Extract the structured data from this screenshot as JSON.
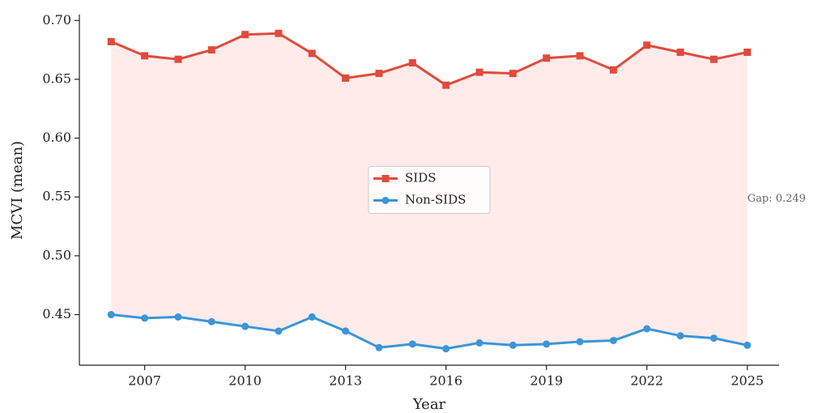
{
  "chart_data": {
    "type": "line",
    "x_label": "Year",
    "y_label": "MCVI (mean)",
    "x": [
      2006,
      2007,
      2008,
      2009,
      2010,
      2011,
      2012,
      2013,
      2014,
      2015,
      2016,
      2017,
      2018,
      2019,
      2020,
      2021,
      2022,
      2023,
      2024,
      2025
    ],
    "series": [
      {
        "name": "SIDS",
        "color": "#e04b3c",
        "marker": "square",
        "values": [
          0.682,
          0.67,
          0.667,
          0.675,
          0.688,
          0.689,
          0.672,
          0.651,
          0.655,
          0.664,
          0.645,
          0.656,
          0.655,
          0.668,
          0.67,
          0.658,
          0.679,
          0.673,
          0.667,
          0.673
        ]
      },
      {
        "name": "Non-SIDS",
        "color": "#3a96d6",
        "marker": "circle",
        "values": [
          0.45,
          0.447,
          0.448,
          0.444,
          0.44,
          0.436,
          0.448,
          0.436,
          0.422,
          0.425,
          0.421,
          0.426,
          0.424,
          0.425,
          0.427,
          0.428,
          0.438,
          0.432,
          0.43,
          0.424
        ]
      }
    ],
    "fill_between": {
      "color": "#fde3e1"
    },
    "annotation": "Gap: 0.249",
    "xlim": [
      2005.05,
      2025.95
    ],
    "xticks": [
      2007,
      2010,
      2013,
      2016,
      2019,
      2022,
      2025
    ],
    "ylim": [
      0.407,
      0.705
    ],
    "yticks": [
      0.45,
      {
        "value": 0.5,
        "label": "0.50"
      },
      0.55,
      {
        "value": 0.6,
        "label": "0.60"
      },
      0.65,
      {
        "value": 0.7,
        "label": "0.70"
      }
    ],
    "grid": false,
    "legend": "center"
  }
}
